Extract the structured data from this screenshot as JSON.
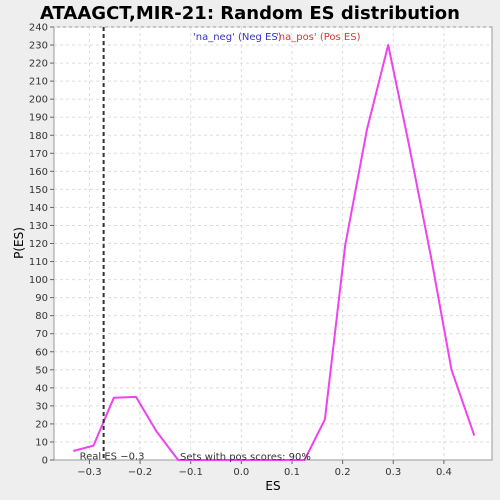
{
  "chart_data": {
    "type": "line",
    "title": "ATAAGCT,MIR-21: Random ES distribution",
    "xlabel": "ES",
    "ylabel": "P(ES)",
    "xlim": [
      -0.37,
      0.495
    ],
    "ylim": [
      0,
      240
    ],
    "xticks": [
      -0.3,
      -0.2,
      -0.1,
      0.0,
      0.1,
      0.2,
      0.3,
      0.4
    ],
    "xtick_labels": [
      "−0.3",
      "−0.2",
      "−0.1",
      "0.0",
      "0.1",
      "0.2",
      "0.3",
      "0.4"
    ],
    "yticks": [
      0,
      10,
      20,
      30,
      40,
      50,
      60,
      70,
      80,
      90,
      100,
      110,
      120,
      130,
      140,
      150,
      160,
      170,
      180,
      190,
      200,
      210,
      220,
      230,
      240
    ],
    "grid": true,
    "legend": {
      "placement": "top-center",
      "entries": [
        {
          "label": "'na_neg' (Neg ES)",
          "color": "#3333cc"
        },
        {
          "label": "'na_pos' (Pos ES)",
          "color": "#dd3333"
        }
      ]
    },
    "series": [
      {
        "color": "#ee44ee",
        "x": [
          -0.332,
          -0.292,
          -0.252,
          -0.208,
          -0.168,
          -0.125,
          -0.085,
          -0.04,
          0.0,
          0.04,
          0.085,
          0.125,
          0.165,
          0.205,
          0.248,
          0.29,
          0.33,
          0.375,
          0.415,
          0.46
        ],
        "y": [
          5,
          8,
          34.5,
          35,
          16,
          0,
          0,
          0,
          0,
          0,
          0,
          0,
          22.5,
          119,
          183,
          230,
          176,
          112,
          50,
          13.5
        ]
      }
    ],
    "vline": {
      "x": -0.272,
      "label": "Real ES −0.3"
    },
    "annotation": "Sets with pos scores: 90%"
  }
}
